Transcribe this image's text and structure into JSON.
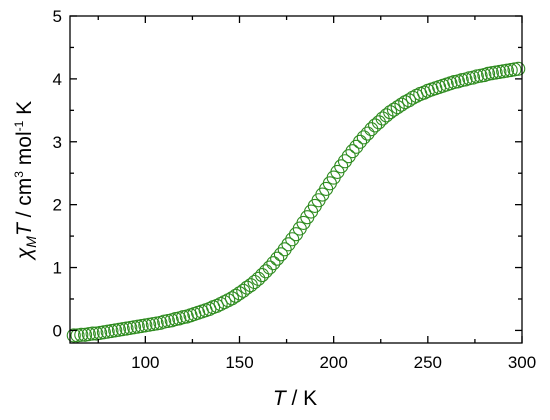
{
  "chart_data": {
    "type": "scatter",
    "title": "",
    "xlabel": {
      "symbol": "T",
      "unit": " / K"
    },
    "ylabel": {
      "chi": "χ",
      "sub": "M",
      "symbol": "T",
      "unit_a": " / cm",
      "sup_a": "3",
      "unit_b": " mol",
      "sup_b": "-1",
      "unit_c": " K"
    },
    "xlim": [
      60,
      300
    ],
    "ylim": [
      -0.2,
      5
    ],
    "x_major_ticks": [
      100,
      150,
      200,
      250,
      300
    ],
    "x_minor_ticks": [
      75,
      125,
      175,
      225,
      275
    ],
    "x_tick_labels": [
      "100",
      "150",
      "200",
      "250",
      "300"
    ],
    "y_major_ticks": [
      0,
      1,
      2,
      3,
      4,
      5
    ],
    "y_minor_ticks": [
      0.5,
      1.5,
      2.5,
      3.5,
      4.5
    ],
    "y_tick_labels": [
      "0",
      "1",
      "2",
      "3",
      "4",
      "5"
    ],
    "grid": false,
    "legend": "none",
    "marker": "open-circle",
    "color": "#2e8b1f",
    "series": [
      {
        "x": [
          62,
          64,
          66,
          68,
          70,
          72,
          74,
          76,
          78,
          80,
          82,
          84,
          86,
          88,
          90,
          92,
          94,
          96,
          98,
          100,
          102,
          104,
          106,
          108,
          110,
          112,
          114,
          116,
          118,
          120,
          122,
          124,
          126,
          128,
          130,
          132,
          134,
          136,
          138,
          140,
          142,
          144,
          146,
          148,
          150,
          152,
          154,
          156,
          158,
          160,
          162,
          164,
          166,
          168,
          170,
          172,
          174,
          176,
          178,
          180,
          182,
          184,
          186,
          188,
          190,
          192,
          194,
          196,
          198,
          200,
          202,
          204,
          206,
          208,
          210,
          212,
          214,
          216,
          218,
          220,
          222,
          224,
          226,
          228,
          230,
          232,
          234,
          236,
          238,
          240,
          242,
          244,
          246,
          248,
          250,
          252,
          254,
          256,
          258,
          260,
          262,
          264,
          266,
          268,
          270,
          272,
          274,
          276,
          278,
          280,
          282,
          284,
          286,
          288,
          290,
          292,
          294,
          296,
          298
        ],
        "y": [
          -0.08,
          -0.08,
          -0.07,
          -0.07,
          -0.06,
          -0.05,
          -0.05,
          -0.04,
          -0.03,
          -0.02,
          -0.01,
          0.0,
          0.01,
          0.02,
          0.03,
          0.04,
          0.05,
          0.06,
          0.07,
          0.08,
          0.09,
          0.1,
          0.11,
          0.12,
          0.14,
          0.15,
          0.16,
          0.18,
          0.19,
          0.21,
          0.22,
          0.24,
          0.26,
          0.28,
          0.3,
          0.32,
          0.34,
          0.37,
          0.39,
          0.42,
          0.45,
          0.48,
          0.51,
          0.55,
          0.59,
          0.63,
          0.68,
          0.72,
          0.77,
          0.82,
          0.88,
          0.94,
          1.0,
          1.07,
          1.14,
          1.21,
          1.29,
          1.37,
          1.45,
          1.53,
          1.62,
          1.71,
          1.8,
          1.89,
          1.98,
          2.07,
          2.16,
          2.25,
          2.34,
          2.43,
          2.52,
          2.61,
          2.69,
          2.77,
          2.85,
          2.92,
          3.0,
          3.07,
          3.13,
          3.2,
          3.26,
          3.31,
          3.37,
          3.42,
          3.47,
          3.51,
          3.55,
          3.59,
          3.63,
          3.66,
          3.7,
          3.73,
          3.76,
          3.78,
          3.81,
          3.83,
          3.85,
          3.87,
          3.89,
          3.91,
          3.93,
          3.95,
          3.96,
          3.98,
          3.99,
          4.01,
          4.02,
          4.04,
          4.05,
          4.06,
          4.08,
          4.09,
          4.1,
          4.11,
          4.12,
          4.13,
          4.14,
          4.15,
          4.16
        ]
      }
    ]
  }
}
